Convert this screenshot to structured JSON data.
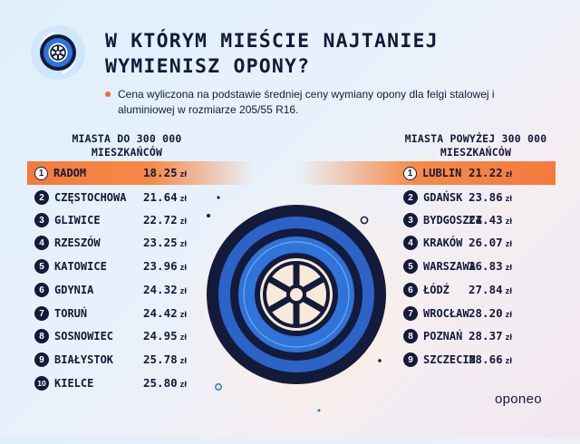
{
  "header": {
    "title_line1": "W KTÓRYM MIEŚCIE NAJTANIEJ",
    "title_line2": "WYMIENISZ OPONY?",
    "note": "Cena wyliczona na podstawie średniej ceny wymiany opony dla felgi stalowej i aluminiowej w rozmiarze 205/55 R16."
  },
  "left_column": {
    "heading_line1": "MIASTA DO 300 000",
    "heading_line2": "MIESZKAŃCÓW",
    "rows": [
      {
        "rank": "1",
        "city": "RADOM",
        "price": "18.25",
        "unit": "zł"
      },
      {
        "rank": "2",
        "city": "CZĘSTOCHOWA",
        "price": "21.64",
        "unit": "zł"
      },
      {
        "rank": "3",
        "city": "GLIWICE",
        "price": "22.72",
        "unit": "zł"
      },
      {
        "rank": "4",
        "city": "RZESZÓW",
        "price": "23.25",
        "unit": "zł"
      },
      {
        "rank": "5",
        "city": "KATOWICE",
        "price": "23.96",
        "unit": "zł"
      },
      {
        "rank": "6",
        "city": "GDYNIA",
        "price": "24.32",
        "unit": "zł"
      },
      {
        "rank": "7",
        "city": "TORUŃ",
        "price": "24.42",
        "unit": "zł"
      },
      {
        "rank": "8",
        "city": "SOSNOWIEC",
        "price": "24.95",
        "unit": "zł"
      },
      {
        "rank": "9",
        "city": "BIAŁYSTOK",
        "price": "25.78",
        "unit": "zł"
      },
      {
        "rank": "10",
        "city": "KIELCE",
        "price": "25.80",
        "unit": "zł"
      }
    ]
  },
  "right_column": {
    "heading_line1": "MIASTA POWYŻEJ 300 000",
    "heading_line2": "MIESZKAŃCÓW",
    "rows": [
      {
        "rank": "1",
        "city": "LUBLIN",
        "price": "21.22",
        "unit": "zł"
      },
      {
        "rank": "2",
        "city": "GDAŃSK",
        "price": "23.86",
        "unit": "zł"
      },
      {
        "rank": "3",
        "city": "BYDGOSZCZ",
        "price": "24.43",
        "unit": "zł"
      },
      {
        "rank": "4",
        "city": "KRAKÓW",
        "price": "26.07",
        "unit": "zł"
      },
      {
        "rank": "5",
        "city": "WARSZAWA",
        "price": "26.83",
        "unit": "zł"
      },
      {
        "rank": "6",
        "city": "ŁÓDŹ",
        "price": "27.84",
        "unit": "zł"
      },
      {
        "rank": "7",
        "city": "WROCŁAW",
        "price": "28.20",
        "unit": "zł"
      },
      {
        "rank": "8",
        "city": "POZNAŃ",
        "price": "28.37",
        "unit": "zł"
      },
      {
        "rank": "9",
        "city": "SZCZECIN",
        "price": "28.66",
        "unit": "zł"
      }
    ]
  },
  "brand": {
    "name": "oponeo"
  },
  "colors": {
    "navy": "#141a3a",
    "highlight": "#f47a3c",
    "accent_blue": "#2f74d8",
    "light_blue": "#cfe6fb"
  },
  "icons": {
    "badge": "wheel-icon",
    "center": "tire-icon"
  }
}
